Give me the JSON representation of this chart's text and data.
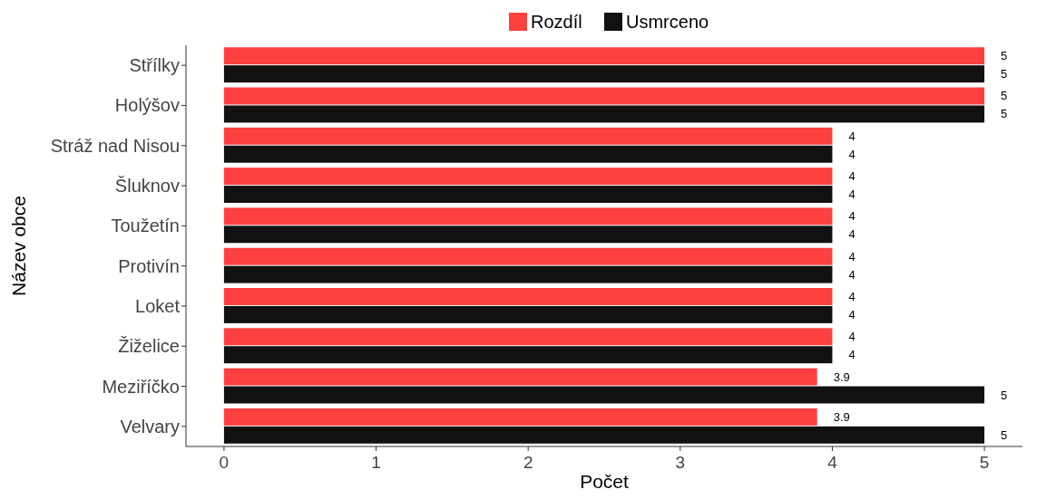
{
  "chart_data": {
    "type": "bar",
    "orientation": "horizontal",
    "xlabel": "Počet",
    "ylabel": "Název obce",
    "categories": [
      "Střílky",
      "Holýšov",
      "Stráž nad Nisou",
      "Šluknov",
      "Toužetín",
      "Protivín",
      "Loket",
      "Žiželice",
      "Meziříčko",
      "Velvary"
    ],
    "series": [
      {
        "name": "Rozdíl",
        "color": "#ff4040",
        "values": [
          5,
          5,
          4,
          4,
          4,
          4,
          4,
          4,
          3.9,
          3.9
        ]
      },
      {
        "name": "Usmrceno",
        "color": "#111111",
        "values": [
          5,
          5,
          4,
          4,
          4,
          4,
          4,
          4,
          5,
          5
        ]
      }
    ],
    "xlim": [
      -0.25,
      5.25
    ],
    "xticks": [
      0,
      1,
      2,
      3,
      4,
      5
    ],
    "data_labels": true,
    "legend": "top",
    "grid": false
  }
}
